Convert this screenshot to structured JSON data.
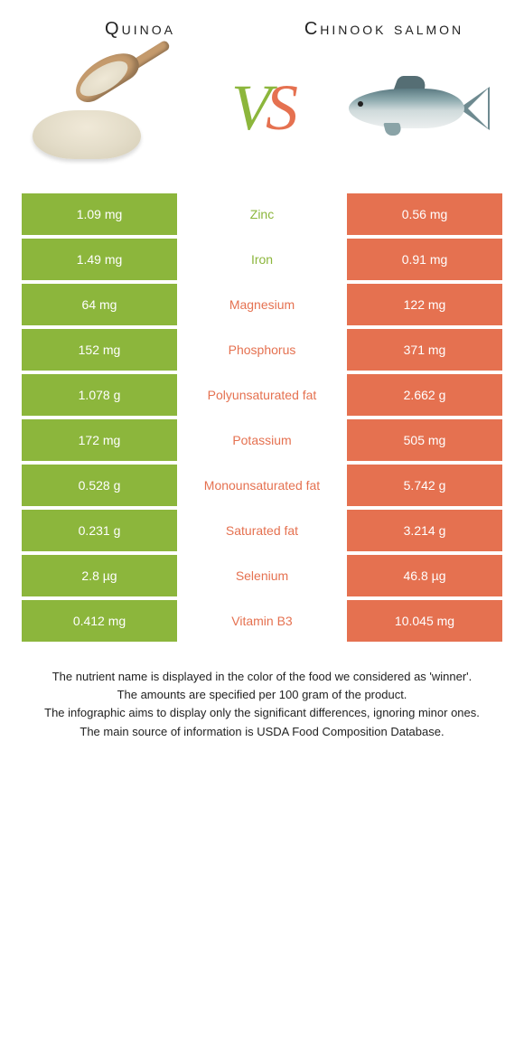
{
  "colors": {
    "left": "#8cb63c",
    "right": "#e57150",
    "text": "#222222",
    "bg": "#ffffff"
  },
  "header": {
    "left_title": "Quinoa",
    "right_title": "Chinook salmon",
    "vs_v": "V",
    "vs_s": "S"
  },
  "table": {
    "rows": [
      {
        "left": "1.09 mg",
        "label": "Zinc",
        "winner": "left",
        "right": "0.56 mg"
      },
      {
        "left": "1.49 mg",
        "label": "Iron",
        "winner": "left",
        "right": "0.91 mg"
      },
      {
        "left": "64 mg",
        "label": "Magnesium",
        "winner": "right",
        "right": "122 mg"
      },
      {
        "left": "152 mg",
        "label": "Phosphorus",
        "winner": "right",
        "right": "371 mg"
      },
      {
        "left": "1.078 g",
        "label": "Polyunsaturated fat",
        "winner": "right",
        "right": "2.662 g"
      },
      {
        "left": "172 mg",
        "label": "Potassium",
        "winner": "right",
        "right": "505 mg"
      },
      {
        "left": "0.528 g",
        "label": "Monounsaturated fat",
        "winner": "right",
        "right": "5.742 g"
      },
      {
        "left": "0.231 g",
        "label": "Saturated fat",
        "winner": "right",
        "right": "3.214 g"
      },
      {
        "left": "2.8 µg",
        "label": "Selenium",
        "winner": "right",
        "right": "46.8 µg"
      },
      {
        "left": "0.412 mg",
        "label": "Vitamin B3",
        "winner": "right",
        "right": "10.045 mg"
      }
    ]
  },
  "footer": {
    "line1": "The nutrient name is displayed in the color of the food we considered as 'winner'.",
    "line2": "The amounts are specified per 100 gram of the product.",
    "line3": "The infographic aims to display only the significant differences, ignoring minor ones.",
    "line4": "The main source of information is USDA Food Composition Database."
  }
}
